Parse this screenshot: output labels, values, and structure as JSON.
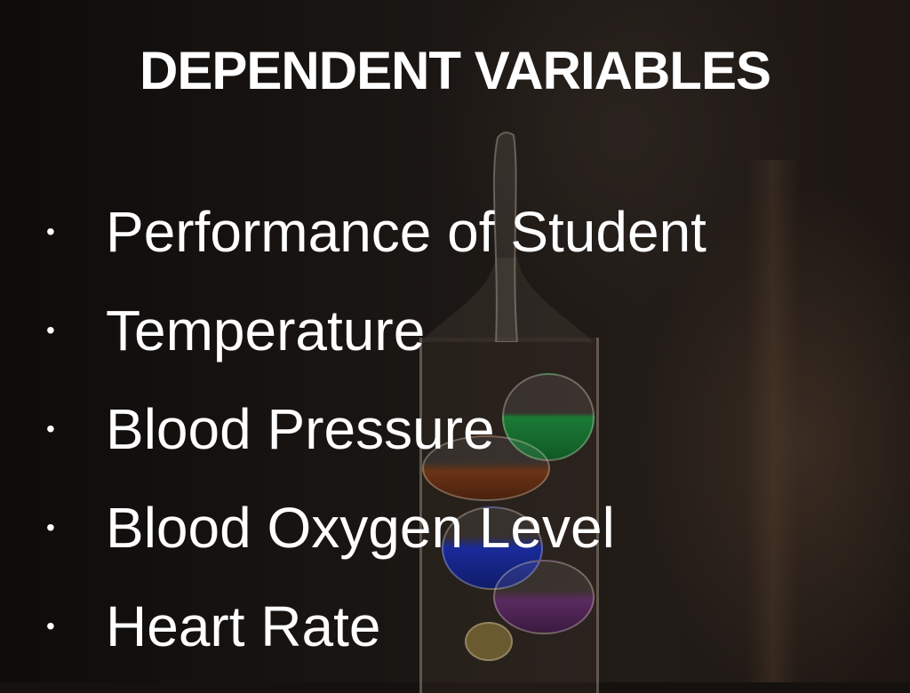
{
  "slide": {
    "title": "DEPENDENT VARIABLES",
    "bullet_glyph": "•",
    "items": [
      {
        "label": "Performance of Student"
      },
      {
        "label": "Temperature"
      },
      {
        "label": "Blood Pressure"
      },
      {
        "label": "Blood Oxygen Level"
      },
      {
        "label": "Heart Rate"
      }
    ],
    "background_image": "galileo-thermometer-photo"
  }
}
